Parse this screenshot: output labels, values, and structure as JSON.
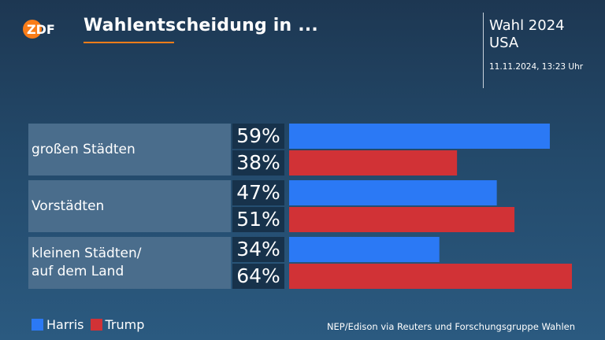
{
  "header": {
    "logo_text": "ZDF",
    "title": "Wahlentscheidung in ...",
    "election_title": "Wahl 2024",
    "election_country": "USA",
    "timestamp": "11.11.2024, 13:23 Uhr"
  },
  "colors": {
    "harris": "#2b79f5",
    "trump": "#d13236",
    "accent": "#fa7d19"
  },
  "chart_data": {
    "type": "bar",
    "orientation": "horizontal",
    "categories": [
      [
        "großen Städten"
      ],
      [
        "Vorstädten"
      ],
      [
        "kleinen Städten/",
        "auf dem Land"
      ]
    ],
    "series": [
      {
        "name": "Harris",
        "values": [
          59,
          47,
          34
        ],
        "labels": [
          "59%",
          "47%",
          "34%"
        ]
      },
      {
        "name": "Trump",
        "values": [
          38,
          51,
          64
        ],
        "labels": [
          "38%",
          "51%",
          "64%"
        ]
      }
    ],
    "xlim": [
      0,
      64
    ],
    "legend": "bottom-left"
  },
  "footer": {
    "source": "NEP/Edison via Reuters und Forschungsgruppe Wahlen"
  }
}
